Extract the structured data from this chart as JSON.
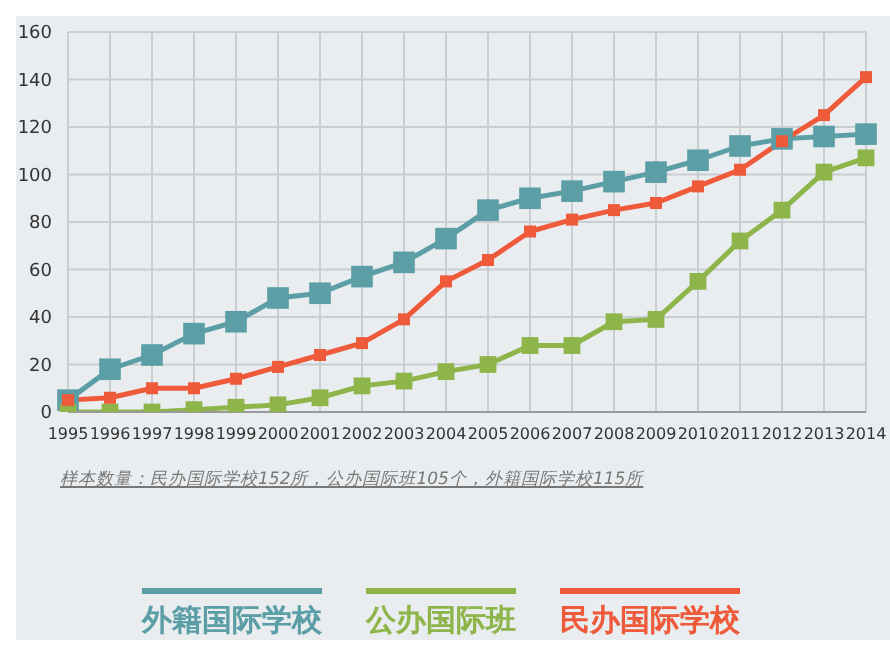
{
  "chart_data": {
    "type": "line",
    "categories": [
      "1995",
      "1996",
      "1997",
      "1998",
      "1999",
      "2000",
      "2001",
      "2002",
      "2003",
      "2004",
      "2005",
      "2006",
      "2007",
      "2008",
      "2009",
      "2010",
      "2011",
      "2012",
      "2013",
      "2014"
    ],
    "series": [
      {
        "name": "外籍国际学校",
        "color": "#5b9ea6",
        "values": [
          5,
          18,
          24,
          33,
          38,
          48,
          50,
          57,
          63,
          73,
          85,
          90,
          93,
          97,
          101,
          106,
          112,
          115,
          116,
          117
        ]
      },
      {
        "name": "公办国际班",
        "color": "#8db54a",
        "values": [
          0,
          0,
          0,
          1,
          2,
          3,
          6,
          11,
          13,
          17,
          20,
          28,
          28,
          38,
          39,
          55,
          72,
          85,
          101,
          107
        ]
      },
      {
        "name": "民办国际学校",
        "color": "#ee5a3a",
        "values": [
          5,
          6,
          10,
          10,
          14,
          19,
          24,
          29,
          39,
          55,
          64,
          76,
          81,
          85,
          88,
          95,
          102,
          114,
          125,
          141
        ]
      }
    ],
    "ylim": [
      0,
      160
    ],
    "yticks": [
      0,
      20,
      40,
      60,
      80,
      100,
      120,
      140,
      160
    ],
    "grid": true,
    "legend": "bottom",
    "marker": "square",
    "line_style": "solid",
    "annotations": [
      "样本数量：民办国际学校152所，公办国际班105个，外籍国际学校115所"
    ]
  }
}
